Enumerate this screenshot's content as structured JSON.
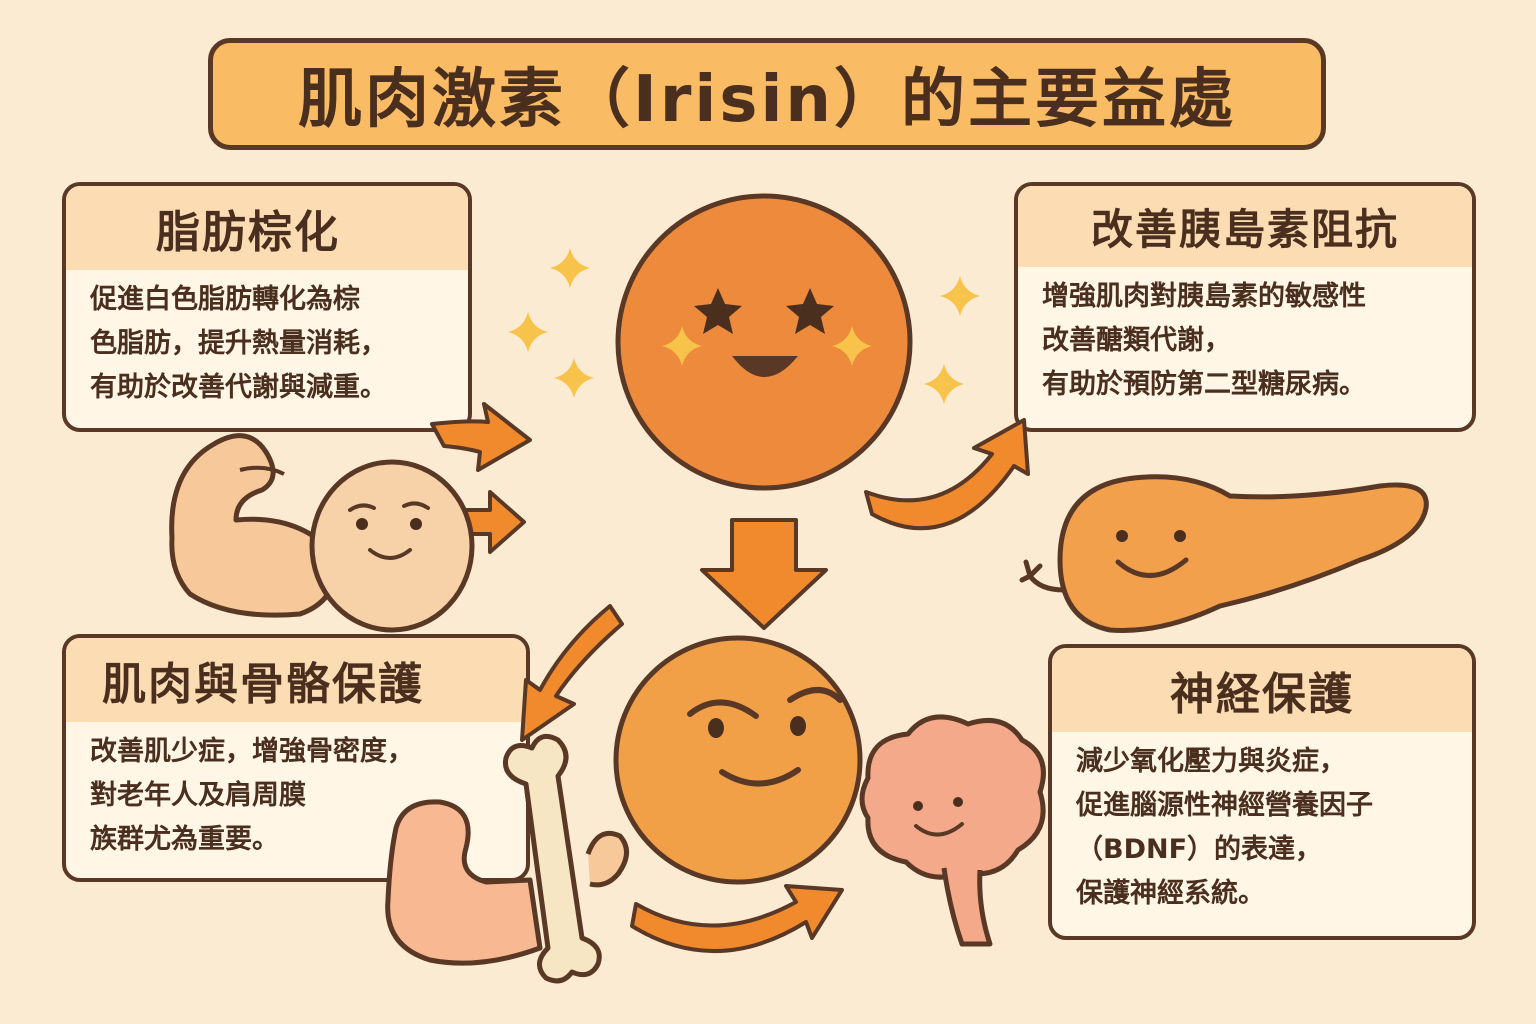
{
  "title": "肌肉激素（Irisin）的主要益處",
  "cards": {
    "fat": {
      "heading": "脂肪棕化",
      "body": "促進白色脂肪轉化為棕\n色脂肪，提升熱量消耗，\n有助於改善代謝與減重。"
    },
    "insulin": {
      "heading": "改善胰島素阻抗",
      "body": "增強肌肉對胰島素的敏感性\n改善醣類代謝，\n有助於預防第二型糖尿病。"
    },
    "muscle": {
      "heading": "肌肉與骨骼保護",
      "body": "改善肌少症，增強骨密度，\n對老年人及肩周膜\n族群尤為重要。"
    },
    "nerve": {
      "heading": "神経保護",
      "body": "減少氧化壓力與炎症，\n促進腦源性神經營養因子\n（BDNF）的表達，\n保護神經系統。"
    }
  },
  "colors": {
    "background": "#fcebd3",
    "title_fill": "#f9bb63",
    "outline": "#5a3826",
    "orange": "#ee8a3c",
    "arrow": "#f08a2c",
    "sparkle": "#f7c34a",
    "skin": "#f7c89a",
    "bone": "#f6e6c4",
    "brain": "#f4a98a"
  },
  "icons": [
    "sparkle-icon",
    "arrow-icon",
    "muscle-arm-icon",
    "pancreas-icon",
    "brain-icon",
    "bone-icon",
    "face-icon"
  ]
}
